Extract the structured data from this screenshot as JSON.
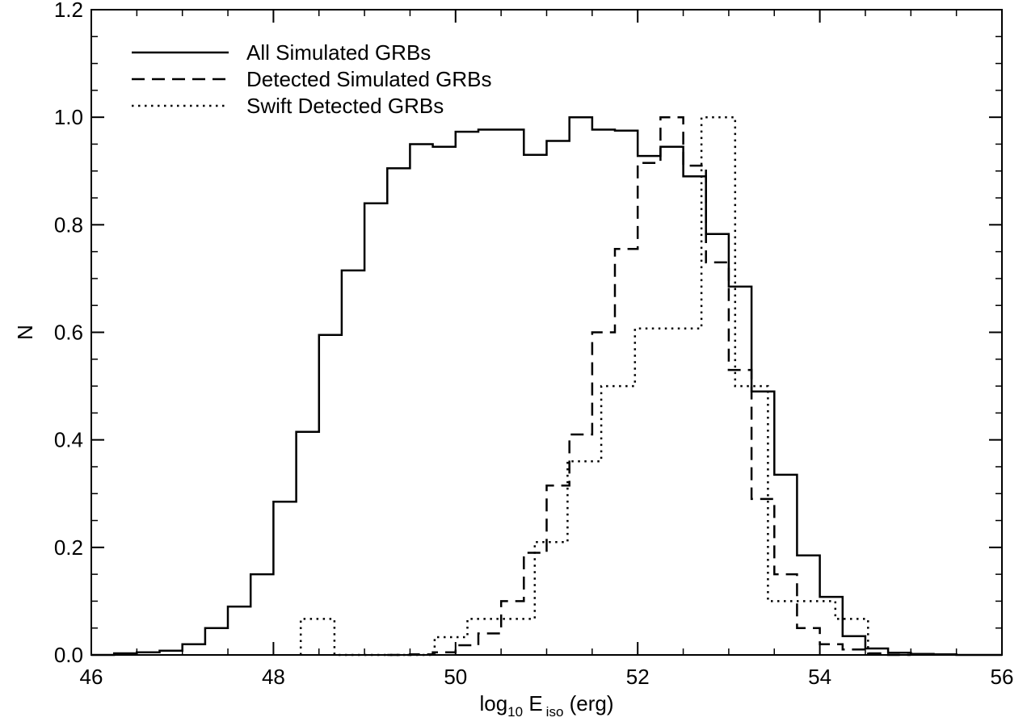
{
  "chart_data": {
    "type": "histogram",
    "title": "",
    "xlabel": {
      "main": "log",
      "sub": "10",
      "sym": " E",
      "sym_sub": "iso",
      "unit": " (erg)"
    },
    "ylabel": "N",
    "xlim": [
      46,
      56
    ],
    "ylim": [
      0,
      1.2
    ],
    "xticks": [
      46,
      48,
      50,
      52,
      54,
      56
    ],
    "xtick_labels": [
      "46",
      "48",
      "50",
      "52",
      "54",
      "56"
    ],
    "yticks": [
      0.0,
      0.2,
      0.4,
      0.6,
      0.8,
      1.0,
      1.2
    ],
    "ytick_labels": [
      "0.0",
      "0.2",
      "0.4",
      "0.6",
      "0.8",
      "1.0",
      "1.2"
    ],
    "legend_position": "top-left",
    "series": [
      {
        "name": "All Simulated GRBs",
        "line_style": "solid",
        "color": "#000000",
        "bin_edges": [
          46.0,
          46.25,
          46.5,
          46.75,
          47.0,
          47.25,
          47.5,
          47.75,
          48.0,
          48.25,
          48.5,
          48.75,
          49.0,
          49.25,
          49.5,
          49.75,
          50.0,
          50.25,
          50.5,
          50.75,
          51.0,
          51.25,
          51.5,
          51.75,
          52.0,
          52.25,
          52.5,
          52.75,
          53.0,
          53.25,
          53.5,
          53.75,
          54.0,
          54.25,
          54.5,
          54.75,
          55.0,
          55.25,
          55.5,
          55.75,
          56.0
        ],
        "values": [
          0.0,
          0.003,
          0.005,
          0.008,
          0.02,
          0.05,
          0.09,
          0.15,
          0.285,
          0.415,
          0.595,
          0.715,
          0.84,
          0.905,
          0.95,
          0.945,
          0.973,
          0.977,
          0.977,
          0.93,
          0.956,
          1.0,
          0.977,
          0.975,
          0.928,
          0.945,
          0.89,
          0.783,
          0.685,
          0.49,
          0.335,
          0.185,
          0.108,
          0.035,
          0.012,
          0.004,
          0.002,
          0.001,
          0.0,
          0.0
        ]
      },
      {
        "name": "Detected Simulated GRBs",
        "line_style": "dashed",
        "color": "#000000",
        "bin_edges": [
          49.25,
          49.5,
          49.75,
          50.0,
          50.25,
          50.5,
          50.75,
          51.0,
          51.25,
          51.5,
          51.75,
          52.0,
          52.25,
          52.5,
          52.75,
          53.0,
          53.25,
          53.5,
          53.75,
          54.0,
          54.25,
          54.5,
          54.75,
          55.0
        ],
        "values": [
          0.0,
          0.001,
          0.005,
          0.018,
          0.04,
          0.1,
          0.19,
          0.315,
          0.41,
          0.6,
          0.755,
          0.915,
          1.0,
          0.91,
          0.73,
          0.53,
          0.29,
          0.15,
          0.05,
          0.02,
          0.01,
          0.003,
          0.0
        ]
      },
      {
        "name": "Swift Detected GRBs",
        "line_style": "dotted",
        "color": "#000000",
        "bin_edges": [
          48.3,
          48.67,
          49.03,
          49.4,
          49.77,
          50.13,
          50.5,
          50.87,
          51.23,
          51.6,
          51.97,
          52.33,
          52.7,
          53.07,
          53.43,
          53.8,
          54.17,
          54.53
        ],
        "values": [
          0.067,
          0.0,
          0.0,
          0.0,
          0.033,
          0.067,
          0.067,
          0.21,
          0.36,
          0.5,
          0.607,
          0.607,
          1.0,
          0.5,
          0.1,
          0.1,
          0.067
        ]
      }
    ]
  }
}
